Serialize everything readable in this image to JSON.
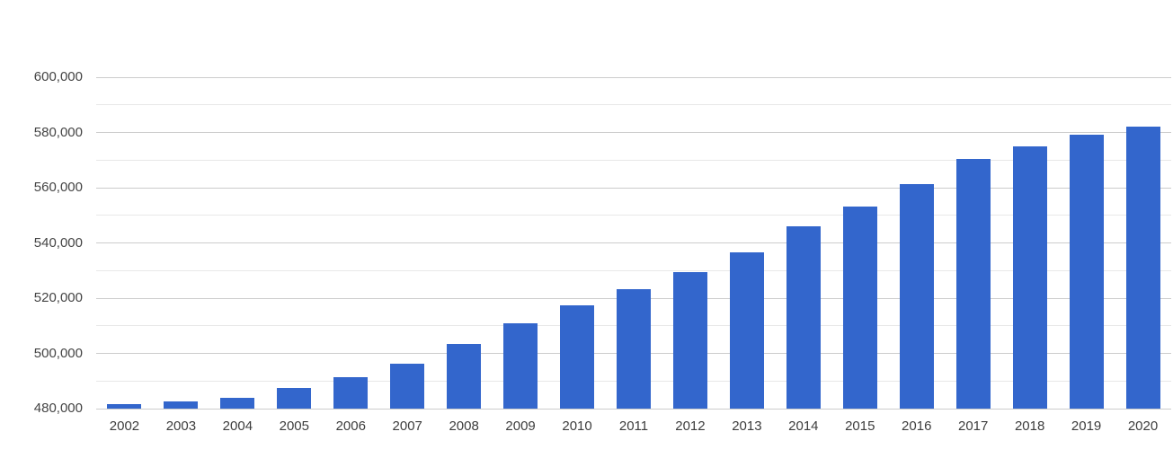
{
  "chart_data": {
    "type": "bar",
    "title": "",
    "categories": [
      "2002",
      "2003",
      "2004",
      "2005",
      "2006",
      "2007",
      "2008",
      "2009",
      "2010",
      "2011",
      "2012",
      "2013",
      "2014",
      "2015",
      "2016",
      "2017",
      "2018",
      "2019",
      "2020"
    ],
    "values": [
      481500,
      482600,
      484000,
      487500,
      491400,
      496200,
      503300,
      510900,
      517300,
      523400,
      529400,
      536600,
      545900,
      553200,
      561300,
      570400,
      575000,
      579100,
      582200
    ],
    "xlabel": "",
    "ylabel": "",
    "ylim": [
      480000,
      600000
    ],
    "y_major_step": 20000,
    "y_minor_step": 10000,
    "y_tick_labels": [
      "480,000",
      "500,000",
      "520,000",
      "540,000",
      "560,000",
      "580,000",
      "600,000"
    ],
    "grid": true,
    "legend_position": "none",
    "bar_color": "#3366cc",
    "grid_major_color": "#cccccc",
    "grid_minor_color": "#e8e8e8",
    "label_color": "#444444",
    "background_color": "#ffffff"
  }
}
